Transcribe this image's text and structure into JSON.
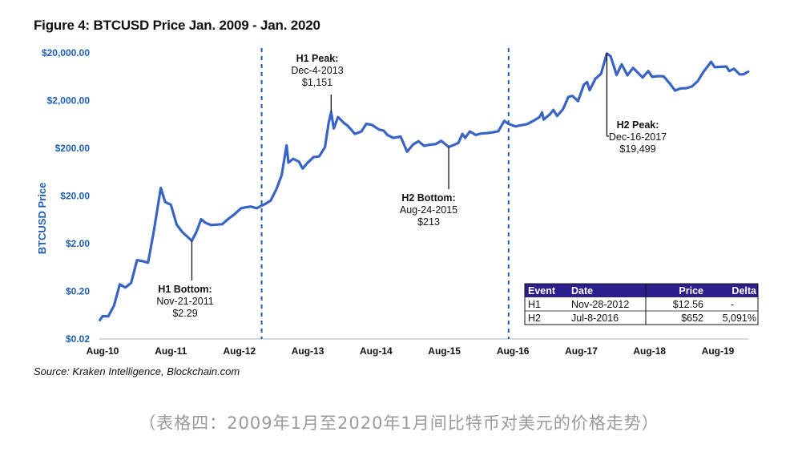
{
  "title": "Figure 4: BTCUSD Price Jan. 2009 - Jan. 2020",
  "source": "Source: Kraken Intelligence, Blockchain.com",
  "caption": "（表格四：2009年1月至2020年1月间比特币对美元的价格走势）",
  "colors": {
    "line": "#3a64c4",
    "axis_label": "#1f5fb5",
    "table_header": "#2b1f8c",
    "divider": "#1f5fb5"
  },
  "chart_data": {
    "type": "line",
    "title": "Figure 4: BTCUSD Price Jan. 2009 - Jan. 2020",
    "xlabel": "",
    "ylabel": "BTCUSD Price",
    "y_scale": "log",
    "ylim": [
      0.02,
      20000
    ],
    "xlim": [
      "2010-07-01",
      "2020-01-15"
    ],
    "y_ticks": [
      0.02,
      0.2,
      2,
      20,
      200,
      2000,
      20000
    ],
    "y_tick_labels": [
      "$0.02",
      "$0.20",
      "$2.00",
      "$20.00",
      "$200.00",
      "$2,000.00",
      "$20,000.00"
    ],
    "x_ticks": [
      "2010-08-01",
      "2011-08-01",
      "2012-08-01",
      "2013-08-01",
      "2014-08-01",
      "2015-08-01",
      "2016-08-01",
      "2017-08-01",
      "2018-08-01",
      "2019-08-01"
    ],
    "x_tick_labels": [
      "Aug-10",
      "Aug-11",
      "Aug-12",
      "Aug-13",
      "Aug-14",
      "Aug-15",
      "Aug-16",
      "Aug-17",
      "Aug-18",
      "Aug-19"
    ],
    "grid": false,
    "series": [
      {
        "points": [
          [
            "2010-07-18",
            0.05
          ],
          [
            "2010-08-01",
            0.06
          ],
          [
            "2010-09-01",
            0.06
          ],
          [
            "2010-10-01",
            0.1
          ],
          [
            "2010-11-01",
            0.28
          ],
          [
            "2010-12-01",
            0.24
          ],
          [
            "2011-01-01",
            0.3
          ],
          [
            "2011-02-01",
            0.9
          ],
          [
            "2011-03-01",
            0.86
          ],
          [
            "2011-04-01",
            0.8
          ],
          [
            "2011-05-01",
            3.5
          ],
          [
            "2011-06-08",
            29.6
          ],
          [
            "2011-07-01",
            15
          ],
          [
            "2011-08-01",
            13
          ],
          [
            "2011-09-01",
            5
          ],
          [
            "2011-10-01",
            3.5
          ],
          [
            "2011-11-21",
            2.29
          ],
          [
            "2011-12-15",
            3.5
          ],
          [
            "2012-01-10",
            6.5
          ],
          [
            "2012-02-01",
            5.5
          ],
          [
            "2012-03-01",
            4.9
          ],
          [
            "2012-04-01",
            5.0
          ],
          [
            "2012-05-01",
            5.1
          ],
          [
            "2012-06-01",
            6.5
          ],
          [
            "2012-07-01",
            8.0
          ],
          [
            "2012-08-10",
            11.0
          ],
          [
            "2012-09-01",
            11.5
          ],
          [
            "2012-10-01",
            12.0
          ],
          [
            "2012-11-01",
            11.0
          ],
          [
            "2012-11-28",
            12.56
          ],
          [
            "2012-12-15",
            13.5
          ],
          [
            "2013-01-15",
            16.0
          ],
          [
            "2013-02-15",
            28.0
          ],
          [
            "2013-03-15",
            55.0
          ],
          [
            "2013-04-10",
            230.0
          ],
          [
            "2013-04-20",
            100.0
          ],
          [
            "2013-05-15",
            120.0
          ],
          [
            "2013-06-15",
            105.0
          ],
          [
            "2013-07-05",
            75.0
          ],
          [
            "2013-08-01",
            100.0
          ],
          [
            "2013-09-01",
            130.0
          ],
          [
            "2013-10-01",
            135.0
          ],
          [
            "2013-11-01",
            210.0
          ],
          [
            "2013-11-20",
            650.0
          ],
          [
            "2013-12-04",
            1151.0
          ],
          [
            "2013-12-18",
            520.0
          ],
          [
            "2014-01-10",
            900.0
          ],
          [
            "2014-02-10",
            680.0
          ],
          [
            "2014-03-01",
            600.0
          ],
          [
            "2014-04-10",
            400.0
          ],
          [
            "2014-05-15",
            450.0
          ],
          [
            "2014-06-10",
            650.0
          ],
          [
            "2014-07-10",
            620.0
          ],
          [
            "2014-08-18",
            490.0
          ],
          [
            "2014-09-10",
            470.0
          ],
          [
            "2014-10-01",
            380.0
          ],
          [
            "2014-11-01",
            330.0
          ],
          [
            "2014-12-10",
            350.0
          ],
          [
            "2015-01-14",
            170.0
          ],
          [
            "2015-02-15",
            240.0
          ],
          [
            "2015-03-15",
            280.0
          ],
          [
            "2015-04-15",
            225.0
          ],
          [
            "2015-05-15",
            237.0
          ],
          [
            "2015-06-15",
            245.0
          ],
          [
            "2015-07-15",
            285.0
          ],
          [
            "2015-08-24",
            213.0
          ],
          [
            "2015-09-15",
            230.0
          ],
          [
            "2015-10-15",
            260.0
          ],
          [
            "2015-11-05",
            400.0
          ],
          [
            "2015-11-20",
            330.0
          ],
          [
            "2015-12-15",
            450.0
          ],
          [
            "2016-01-15",
            380.0
          ],
          [
            "2016-02-15",
            410.0
          ],
          [
            "2016-03-15",
            415.0
          ],
          [
            "2016-04-15",
            430.0
          ],
          [
            "2016-05-15",
            455.0
          ],
          [
            "2016-06-16",
            750.0
          ],
          [
            "2016-07-08",
            652.0
          ],
          [
            "2016-08-15",
            575.0
          ],
          [
            "2016-09-15",
            610.0
          ],
          [
            "2016-10-15",
            640.0
          ],
          [
            "2016-11-15",
            740.0
          ],
          [
            "2016-12-20",
            890.0
          ],
          [
            "2017-01-04",
            1130.0
          ],
          [
            "2017-01-12",
            800.0
          ],
          [
            "2017-02-15",
            1030.0
          ],
          [
            "2017-03-05",
            1270.0
          ],
          [
            "2017-03-25",
            950.0
          ],
          [
            "2017-04-25",
            1300.0
          ],
          [
            "2017-05-25",
            2400.0
          ],
          [
            "2017-06-15",
            2500.0
          ],
          [
            "2017-07-15",
            1950.0
          ],
          [
            "2017-08-15",
            4300.0
          ],
          [
            "2017-09-01",
            4900.0
          ],
          [
            "2017-09-15",
            3300.0
          ],
          [
            "2017-10-15",
            5700.0
          ],
          [
            "2017-11-15",
            7300.0
          ],
          [
            "2017-12-16",
            19499.0
          ],
          [
            "2018-01-05",
            17000.0
          ],
          [
            "2018-02-06",
            6900.0
          ],
          [
            "2018-03-05",
            11500.0
          ],
          [
            "2018-04-05",
            6800.0
          ],
          [
            "2018-05-05",
            9700.0
          ],
          [
            "2018-06-25",
            6100.0
          ],
          [
            "2018-07-25",
            8300.0
          ],
          [
            "2018-08-15",
            6300.0
          ],
          [
            "2018-09-15",
            6500.0
          ],
          [
            "2018-10-15",
            6450.0
          ],
          [
            "2018-11-20",
            4400.0
          ],
          [
            "2018-12-15",
            3250.0
          ],
          [
            "2019-01-15",
            3600.0
          ],
          [
            "2019-02-15",
            3650.0
          ],
          [
            "2019-03-15",
            3950.0
          ],
          [
            "2019-04-15",
            5100.0
          ],
          [
            "2019-05-15",
            7900.0
          ],
          [
            "2019-06-26",
            13000.0
          ],
          [
            "2019-07-15",
            10000.0
          ],
          [
            "2019-08-15",
            10200.0
          ],
          [
            "2019-09-15",
            10300.0
          ],
          [
            "2019-10-01",
            8300.0
          ],
          [
            "2019-10-26",
            9300.0
          ],
          [
            "2019-11-25",
            7100.0
          ],
          [
            "2019-12-15",
            7100.0
          ],
          [
            "2020-01-10",
            8100.0
          ]
        ]
      }
    ],
    "vlines": [
      "2012-11-28",
      "2016-07-09"
    ],
    "annotations": [
      {
        "id": "h1-bottom",
        "title": "H1 Bottom:",
        "date": "Nov-21-2011",
        "price": "$2.29",
        "x": "2011-11-21",
        "y": 2.29
      },
      {
        "id": "h1-peak",
        "title": "H1 Peak:",
        "date": "Dec-4-2013",
        "price": "$1,151",
        "x": "2013-12-04",
        "y": 1151
      },
      {
        "id": "h2-bottom",
        "title": "H2 Bottom:",
        "date": "Aug-24-2015",
        "price": "$213",
        "x": "2015-08-24",
        "y": 213
      },
      {
        "id": "h2-peak",
        "title": "H2 Peak:",
        "date": "Dec-16-2017",
        "price": "$19,499",
        "x": "2017-12-16",
        "y": 19499
      }
    ],
    "table": {
      "headers": [
        "Event",
        "Date",
        "Price",
        "Delta"
      ],
      "rows": [
        [
          "H1",
          "Nov-28-2012",
          "$12.56",
          "-"
        ],
        [
          "H2",
          "Jul-8-2016",
          "$652",
          "5,091%"
        ]
      ]
    }
  }
}
